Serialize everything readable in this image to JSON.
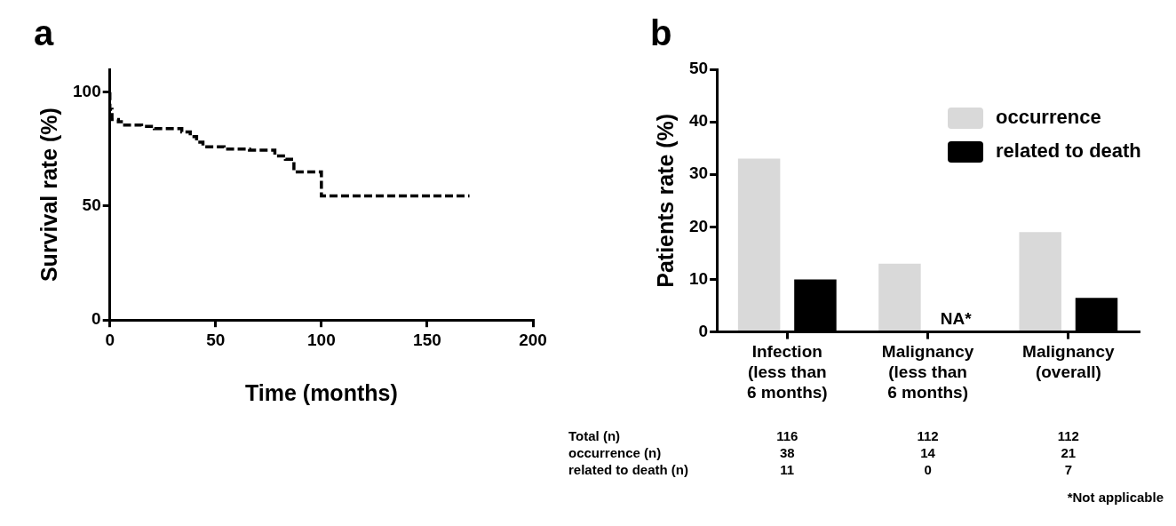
{
  "chart_data": [
    {
      "type": "step",
      "title": "a",
      "xlabel": "Time (months)",
      "ylabel": "Survival rate (%)",
      "color": "#000000",
      "x": [
        0,
        1,
        4,
        7,
        15,
        21,
        34,
        38,
        41,
        44,
        54,
        66,
        78,
        83,
        87,
        100,
        136,
        170
      ],
      "values": [
        100,
        92.5,
        88,
        87,
        85.5,
        85,
        84,
        82.5,
        80.5,
        78,
        76,
        75,
        74.5,
        72,
        70.5,
        65,
        54.5,
        54.5
      ],
      "xlim": [
        0,
        200
      ],
      "xticks": [
        0,
        50,
        100,
        150,
        200
      ],
      "ylim": [
        0,
        110
      ],
      "yticks": [
        0,
        50,
        100
      ],
      "grid": false,
      "legend": false,
      "marker": "none",
      "line_style": "dashed"
    },
    {
      "type": "bar",
      "title": "b",
      "ylabel": "Patients rate (%)",
      "categories": [
        "Infection\n(less than\n6 months)",
        "Malignancy\n(less than\n6 months)",
        "Malignancy\n(overall)"
      ],
      "series": [
        {
          "name": "occurrence",
          "color": "#d9d9d9",
          "values": [
            33,
            13,
            19
          ]
        },
        {
          "name": "related to death",
          "color": "#000000",
          "values": [
            10,
            0,
            6.5
          ]
        }
      ],
      "ylim": [
        0,
        50
      ],
      "yticks": [
        0,
        10,
        20,
        30,
        40,
        50
      ],
      "grid": false,
      "legend": "top right",
      "annotations": [
        {
          "text": "NA*",
          "x": "Malignancy\n(less than\n6 months)",
          "y": 0
        },
        "Total (n)",
        "116",
        "112",
        "112",
        "occurrence (n)",
        "38",
        "14",
        "21",
        "related to death (n)",
        "11",
        "0",
        "7",
        "*Not applicable"
      ]
    }
  ]
}
